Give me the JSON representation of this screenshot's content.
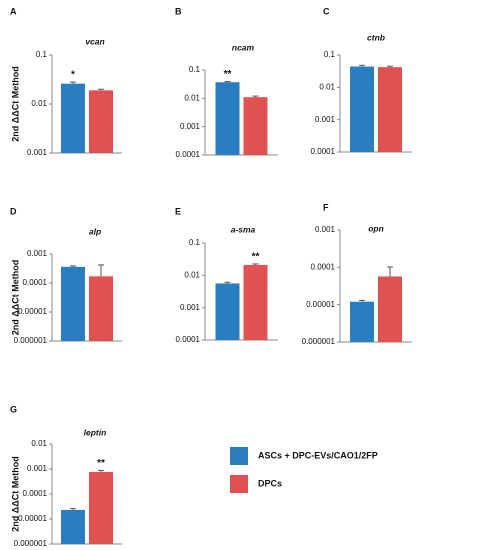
{
  "chart_data": [
    {
      "type": "bar",
      "panel": "A",
      "title": "vcan",
      "ylabel": "2nd ΔΔCt Method",
      "log": true,
      "categories": [
        null,
        null
      ],
      "values": [
        0.026,
        0.019
      ],
      "errors": [
        0.002,
        0.001
      ],
      "annotations": [
        "*",
        null
      ],
      "ylim": [
        0.001,
        0.1
      ],
      "yticks": [
        0.001,
        0.01,
        0.1
      ]
    },
    {
      "type": "bar",
      "panel": "B",
      "title": "ncam",
      "log": true,
      "categories": [
        null,
        null
      ],
      "values": [
        0.037,
        0.011
      ],
      "errors": [
        0.002,
        0.001
      ],
      "annotations": [
        "**",
        null
      ],
      "ylim": [
        0.0001,
        0.1
      ],
      "yticks": [
        0.0001,
        0.001,
        0.01,
        0.1
      ]
    },
    {
      "type": "bar",
      "panel": "C",
      "title": "ctnb",
      "log": true,
      "categories": [
        null,
        null
      ],
      "values": [
        0.044,
        0.042
      ],
      "errors": [
        0.004,
        0.003
      ],
      "annotations": [
        null,
        null
      ],
      "ylim": [
        0.0001,
        0.1
      ],
      "yticks": [
        0.0001,
        0.001,
        0.01,
        0.1
      ]
    },
    {
      "type": "bar",
      "panel": "D",
      "title": "alp",
      "ylabel": "2nd ΔΔCt Method",
      "log": true,
      "categories": [
        null,
        null
      ],
      "values": [
        0.00036,
        0.00017
      ],
      "errors": [
        3e-05,
        0.00025
      ],
      "annotations": [
        null,
        null
      ],
      "ylim": [
        1e-06,
        0.001
      ],
      "yticks": [
        1e-06,
        1e-05,
        0.0001,
        0.001
      ]
    },
    {
      "type": "bar",
      "panel": "E",
      "title": "a-sma",
      "log": true,
      "categories": [
        null,
        null
      ],
      "values": [
        0.0056,
        0.021
      ],
      "errors": [
        0.0005,
        0.0015
      ],
      "annotations": [
        null,
        "**"
      ],
      "ylim": [
        0.0001,
        0.1
      ],
      "yticks": [
        0.0001,
        0.001,
        0.01,
        0.1
      ]
    },
    {
      "type": "bar",
      "panel": "F",
      "title": "opn",
      "log": true,
      "categories": [
        null,
        null
      ],
      "values": [
        1.2e-05,
        5.7e-05
      ],
      "errors": [
        1e-06,
        4.5e-05
      ],
      "annotations": [
        null,
        null
      ],
      "ylim": [
        1e-06,
        0.001
      ],
      "yticks": [
        1e-06,
        1e-05,
        0.0001,
        0.001
      ]
    },
    {
      "type": "bar",
      "panel": "G",
      "title": "leptin",
      "ylabel": "2nd ΔΔCt Method",
      "log": true,
      "categories": [
        null,
        null
      ],
      "values": [
        2.3e-05,
        0.00076
      ],
      "errors": [
        3e-06,
        0.00012
      ],
      "annotations": [
        null,
        "**"
      ],
      "ylim": [
        1e-06,
        0.01
      ],
      "yticks": [
        1e-06,
        1e-05,
        0.0001,
        0.001,
        0.01
      ]
    }
  ],
  "legend": [
    {
      "name": "ASCs + DPC-EVs/CAO1/2FP",
      "color": "#2a7dc1"
    },
    {
      "name": "DPCs",
      "color": "#e05252"
    }
  ]
}
